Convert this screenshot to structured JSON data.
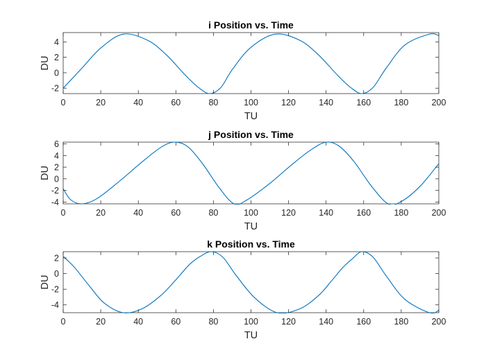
{
  "chart_data": [
    {
      "type": "line",
      "title": "i Position vs. Time",
      "xlabel": "TU",
      "ylabel": "DU",
      "xlim": [
        0,
        200
      ],
      "ylim": [
        -2.7,
        5.2
      ],
      "xticks": [
        0,
        20,
        40,
        60,
        80,
        100,
        120,
        140,
        160,
        180,
        200
      ],
      "yticks": [
        -2,
        0,
        2,
        4
      ],
      "grid": false,
      "series": [
        {
          "color": "#0072BD",
          "x": [
            0,
            10,
            20,
            32,
            45,
            55,
            65,
            72,
            78,
            84,
            90,
            100,
            113,
            126,
            136,
            146,
            153,
            159,
            165,
            172,
            182,
            195,
            200
          ],
          "y": [
            -2.0,
            0.6,
            3.2,
            5.0,
            4.2,
            2.3,
            -0.3,
            -1.9,
            -2.7,
            -1.9,
            0.4,
            3.3,
            5.0,
            4.2,
            2.3,
            -0.3,
            -1.9,
            -2.7,
            -1.9,
            0.6,
            3.6,
            5.0,
            4.8
          ]
        }
      ]
    },
    {
      "type": "line",
      "title": "j Position vs. Time",
      "xlabel": "TU",
      "ylabel": "DU",
      "xlim": [
        0,
        200
      ],
      "ylim": [
        -4.3,
        6.3
      ],
      "xticks": [
        0,
        20,
        40,
        60,
        80,
        100,
        120,
        140,
        160,
        180,
        200
      ],
      "yticks": [
        -4,
        -2,
        0,
        2,
        4,
        6
      ],
      "grid": false,
      "series": [
        {
          "color": "#0072BD",
          "x": [
            0,
            4,
            10,
            18,
            30,
            42,
            52,
            59,
            66,
            74,
            83,
            91,
            98,
            110,
            122,
            132,
            140,
            147,
            155,
            164,
            173,
            180,
            190,
            200
          ],
          "y": [
            -1.7,
            -3.6,
            -4.3,
            -3.4,
            -0.4,
            2.9,
            5.4,
            6.3,
            5.6,
            2.7,
            -1.5,
            -4.3,
            -3.6,
            -0.8,
            2.5,
            5.0,
            6.3,
            5.6,
            2.9,
            -1.2,
            -4.3,
            -3.9,
            -1.3,
            2.6
          ]
        }
      ]
    },
    {
      "type": "line",
      "title": "k Position vs. Time",
      "xlabel": "TU",
      "ylabel": "DU",
      "xlim": [
        0,
        200
      ],
      "ylim": [
        -5.0,
        2.8
      ],
      "xticks": [
        0,
        20,
        40,
        60,
        80,
        100,
        120,
        140,
        160,
        180,
        200
      ],
      "yticks": [
        -4,
        -2,
        0,
        2
      ],
      "grid": false,
      "series": [
        {
          "color": "#0072BD",
          "x": [
            0,
            6,
            14,
            22,
            32,
            42,
            52,
            60,
            67,
            73,
            79,
            85,
            92,
            102,
            114,
            126,
            136,
            143,
            149,
            154,
            159,
            165,
            172,
            182,
            195,
            200
          ],
          "y": [
            2.2,
            0.8,
            -1.6,
            -3.8,
            -5.0,
            -4.5,
            -2.8,
            -0.8,
            1.1,
            2.2,
            2.8,
            2.1,
            -0.2,
            -3.1,
            -5.0,
            -4.5,
            -2.8,
            -0.9,
            0.8,
            1.9,
            2.8,
            2.1,
            -0.3,
            -3.3,
            -5.0,
            -4.7
          ]
        }
      ]
    }
  ]
}
